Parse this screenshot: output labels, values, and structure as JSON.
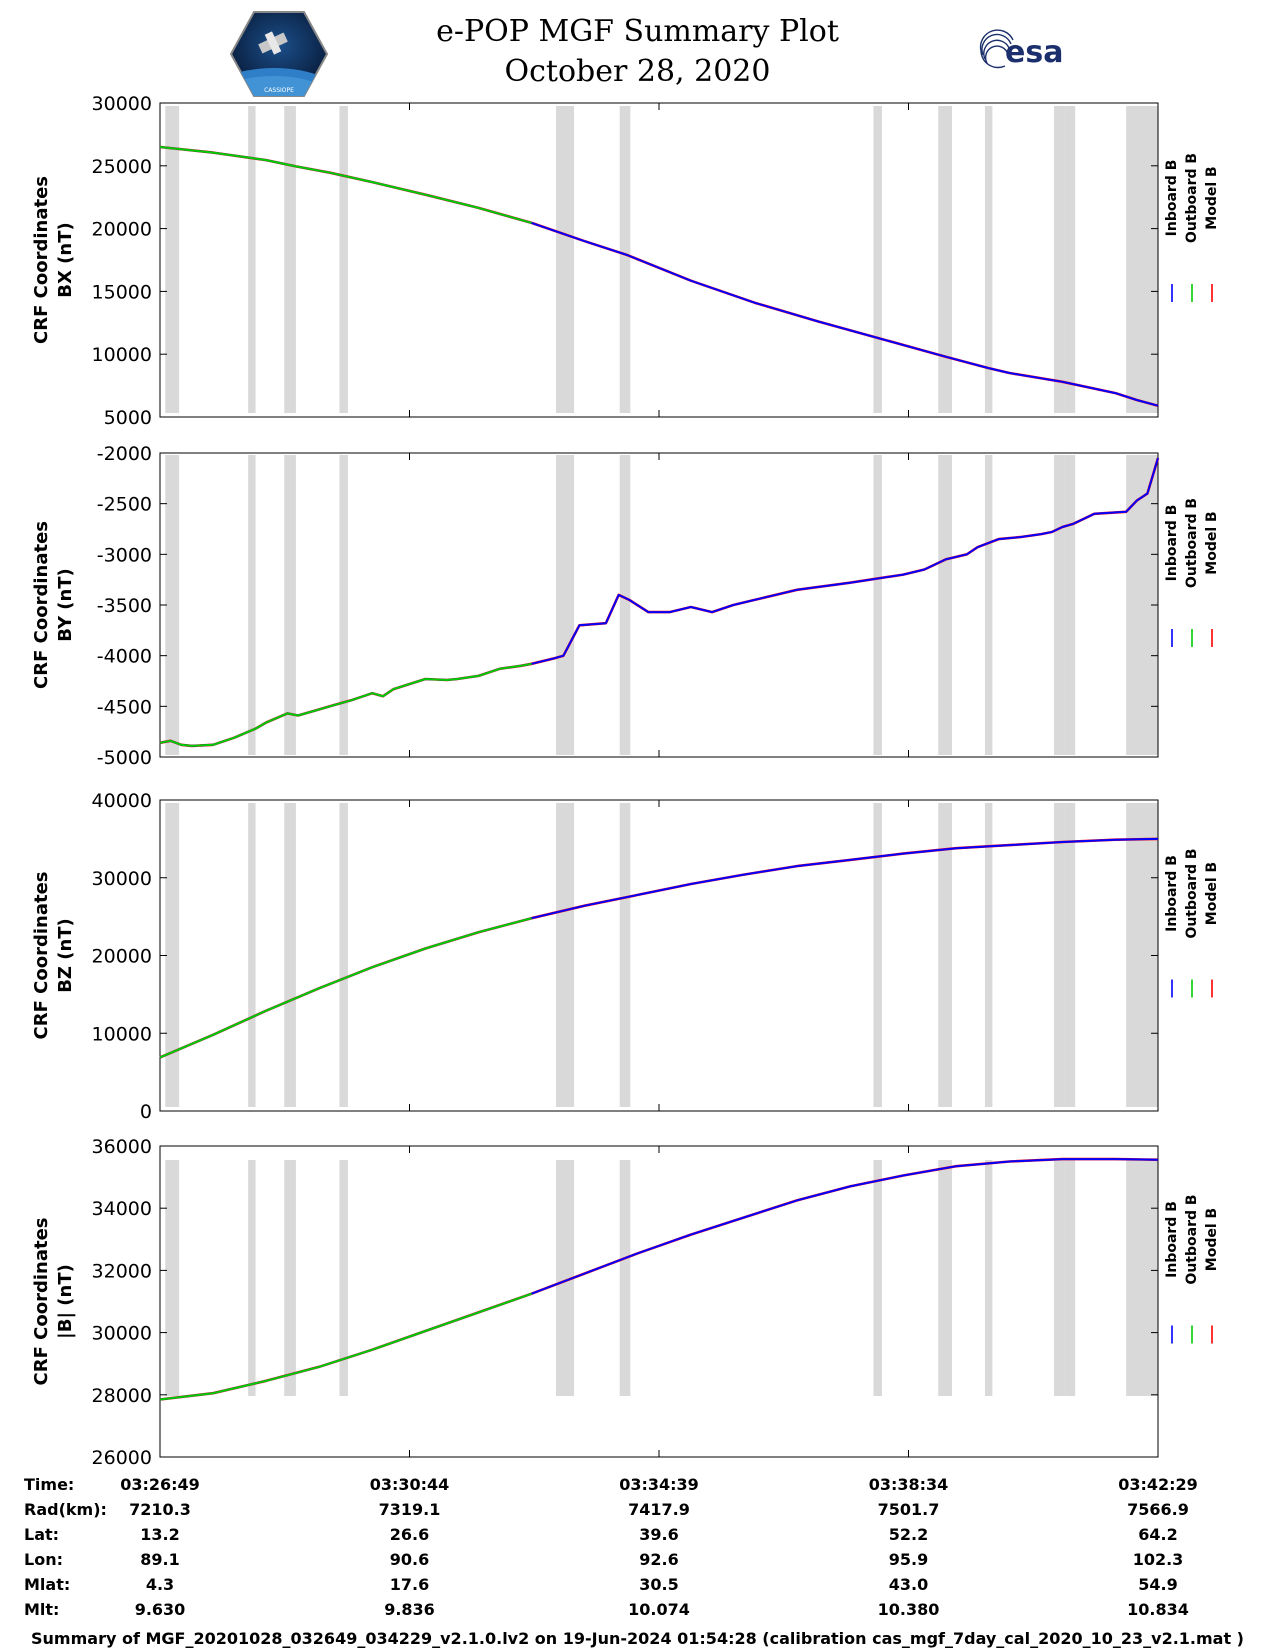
{
  "header": {
    "title_line1": "e-POP MGF Summary Plot",
    "title_line2": "October 28, 2020",
    "left_logo_text": "CASSIOPE",
    "right_logo_text": "esa"
  },
  "colors": {
    "inboard": "#0000ff",
    "outboard": "#00cc00",
    "model": "#ff0000",
    "gap_band": "#d9d9d9"
  },
  "legend": [
    "Inboard B",
    "Outboard B",
    "Model B"
  ],
  "footer": "Summary of MGF_20201028_032649_034229_v2.1.0.lv2 on 19-Jun-2024 01:54:28 (calibration cas_mgf_7day_cal_2020_10_23_v2.1.mat )",
  "info_table": {
    "row_labels": [
      "Time:",
      "Rad(km):",
      "Lat:",
      "Lon:",
      "Mlat:",
      "Mlt:"
    ],
    "columns": [
      [
        "03:26:49",
        "7210.3",
        "13.2",
        "89.1",
        "4.3",
        "9.630"
      ],
      [
        "03:30:44",
        "7319.1",
        "26.6",
        "90.6",
        "17.6",
        "9.836"
      ],
      [
        "03:34:39",
        "7417.9",
        "39.6",
        "92.6",
        "30.5",
        "10.074"
      ],
      [
        "03:38:34",
        "7501.7",
        "52.2",
        "95.9",
        "43.0",
        "10.380"
      ],
      [
        "03:42:29",
        "7566.9",
        "64.2",
        "102.3",
        "54.9",
        "10.834"
      ]
    ]
  },
  "chart_data": {
    "type": "line",
    "x_unit": "seconds since 03:26:49",
    "xlim": [
      0,
      940
    ],
    "x_ticks": [
      0,
      235,
      470,
      705,
      940
    ],
    "gray_bands": [
      [
        5,
        18
      ],
      [
        83,
        90
      ],
      [
        117,
        128
      ],
      [
        169,
        177
      ],
      [
        373,
        390
      ],
      [
        433,
        443
      ],
      [
        672,
        680
      ],
      [
        733,
        746
      ],
      [
        777,
        784
      ],
      [
        842,
        853
      ],
      [
        853,
        862
      ],
      [
        910,
        940
      ]
    ],
    "outboard_end": 350,
    "panels": [
      {
        "ylabel_line1": "CRF Coordinates",
        "ylabel_line2": "BX (nT)",
        "ylim": [
          5000,
          30000
        ],
        "yticks": [
          5000,
          10000,
          15000,
          20000,
          25000,
          30000
        ],
        "series": {
          "x": [
            0,
            50,
            100,
            128,
            160,
            200,
            250,
            300,
            350,
            400,
            440,
            500,
            560,
            620,
            680,
            740,
            780,
            800,
            850,
            900,
            920,
            940
          ],
          "y": [
            26500,
            26050,
            25450,
            24950,
            24450,
            23700,
            22700,
            21650,
            20450,
            19000,
            17900,
            15850,
            14100,
            12600,
            11200,
            9800,
            8900,
            8500,
            7800,
            6900,
            6350,
            5900
          ]
        }
      },
      {
        "ylabel_line1": "CRF Coordinates",
        "ylabel_line2": "BY (nT)",
        "ylim": [
          -5000,
          -2000
        ],
        "yticks": [
          -5000,
          -4500,
          -4000,
          -3500,
          -3000,
          -2500,
          -2000
        ],
        "series": {
          "x": [
            0,
            10,
            20,
            30,
            50,
            70,
            90,
            100,
            120,
            130,
            150,
            160,
            180,
            200,
            210,
            220,
            250,
            270,
            280,
            300,
            320,
            340,
            350,
            370,
            380,
            395,
            420,
            432,
            442,
            460,
            480,
            500,
            520,
            540,
            560,
            600,
            650,
            700,
            720,
            740,
            760,
            770,
            790,
            810,
            830,
            840,
            850,
            860,
            880,
            910,
            920,
            930,
            940
          ],
          "y": [
            -4860,
            -4840,
            -4880,
            -4890,
            -4880,
            -4810,
            -4720,
            -4660,
            -4570,
            -4590,
            -4530,
            -4500,
            -4440,
            -4370,
            -4400,
            -4330,
            -4230,
            -4240,
            -4230,
            -4200,
            -4130,
            -4100,
            -4080,
            -4030,
            -4000,
            -3700,
            -3680,
            -3400,
            -3450,
            -3570,
            -3570,
            -3520,
            -3570,
            -3500,
            -3450,
            -3350,
            -3280,
            -3200,
            -3150,
            -3050,
            -3000,
            -2930,
            -2850,
            -2830,
            -2800,
            -2780,
            -2730,
            -2700,
            -2600,
            -2580,
            -2470,
            -2400,
            -2050
          ]
        }
      },
      {
        "ylabel_line1": "CRF Coordinates",
        "ylabel_line2": "BZ (nT)",
        "ylim": [
          0,
          40000
        ],
        "yticks": [
          0,
          10000,
          20000,
          30000,
          40000
        ],
        "series": {
          "x": [
            0,
            50,
            100,
            150,
            200,
            250,
            300,
            350,
            400,
            450,
            500,
            550,
            600,
            650,
            700,
            750,
            800,
            850,
            900,
            940
          ],
          "y": [
            6900,
            9800,
            12900,
            15800,
            18500,
            20900,
            23000,
            24800,
            26400,
            27800,
            29200,
            30400,
            31500,
            32300,
            33100,
            33800,
            34200,
            34600,
            34900,
            35000
          ]
        }
      },
      {
        "ylabel_line1": "CRF Coordinates",
        "ylabel_line2": "|B| (nT)",
        "ylim": [
          26000,
          36000
        ],
        "yticks": [
          26000,
          28000,
          30000,
          32000,
          34000,
          36000
        ],
        "series": {
          "x": [
            0,
            50,
            100,
            150,
            200,
            250,
            300,
            350,
            400,
            450,
            500,
            550,
            600,
            650,
            700,
            750,
            800,
            850,
            900,
            940
          ],
          "y": [
            27850,
            28050,
            28450,
            28900,
            29450,
            30050,
            30650,
            31250,
            31900,
            32550,
            33150,
            33700,
            34250,
            34700,
            35050,
            35350,
            35500,
            35580,
            35580,
            35560
          ]
        }
      }
    ]
  }
}
